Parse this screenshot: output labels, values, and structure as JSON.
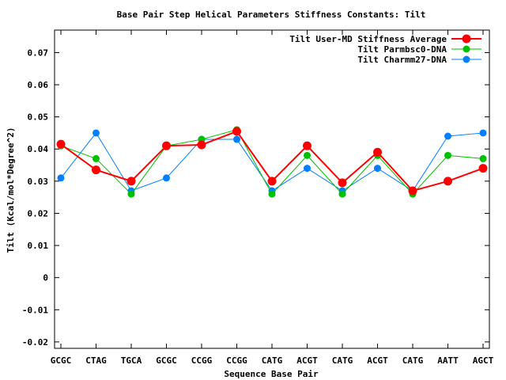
{
  "chart_data": {
    "type": "line",
    "title": "Base Pair Step Helical Parameters Stiffness Constants: Tilt",
    "xlabel": "Sequence Base Pair",
    "ylabel": "Tilt (Kcal/mol*Degree^2)",
    "categories": [
      "GCGC",
      "CTAG",
      "TGCA",
      "GCGC",
      "CCGG",
      "CCGG",
      "CATG",
      "ACGT",
      "CATG",
      "ACGT",
      "CATG",
      "AATT",
      "AGCT"
    ],
    "ylim": [
      -0.022,
      0.077
    ],
    "yticks": [
      -0.02,
      -0.01,
      0,
      0.01,
      0.02,
      0.03,
      0.04,
      0.05,
      0.06,
      0.07
    ],
    "ytick_labels": [
      "-0.02",
      "-0.01",
      "0",
      "0.01",
      "0.02",
      "0.03",
      "0.04",
      "0.05",
      "0.06",
      "0.07"
    ],
    "grid": false,
    "legend_position": "top-right",
    "series": [
      {
        "name": "Tilt User-MD Stiffness Average",
        "color": "#ff0000",
        "values": [
          0.0415,
          0.0335,
          0.03,
          0.041,
          0.0413,
          0.0455,
          0.03,
          0.041,
          0.0295,
          0.039,
          0.027,
          0.03,
          0.034
        ]
      },
      {
        "name": "Tilt Parmbsc0-DNA",
        "color": "#00c000",
        "values": [
          0.041,
          0.037,
          0.026,
          0.041,
          0.043,
          0.046,
          0.026,
          0.038,
          0.026,
          0.038,
          0.026,
          0.038,
          0.037
        ]
      },
      {
        "name": "Tilt Charmm27-DNA",
        "color": "#0080ff",
        "values": [
          0.031,
          0.045,
          0.027,
          0.031,
          0.043,
          0.043,
          0.027,
          0.034,
          0.027,
          0.034,
          0.027,
          0.044,
          0.045
        ]
      }
    ]
  }
}
